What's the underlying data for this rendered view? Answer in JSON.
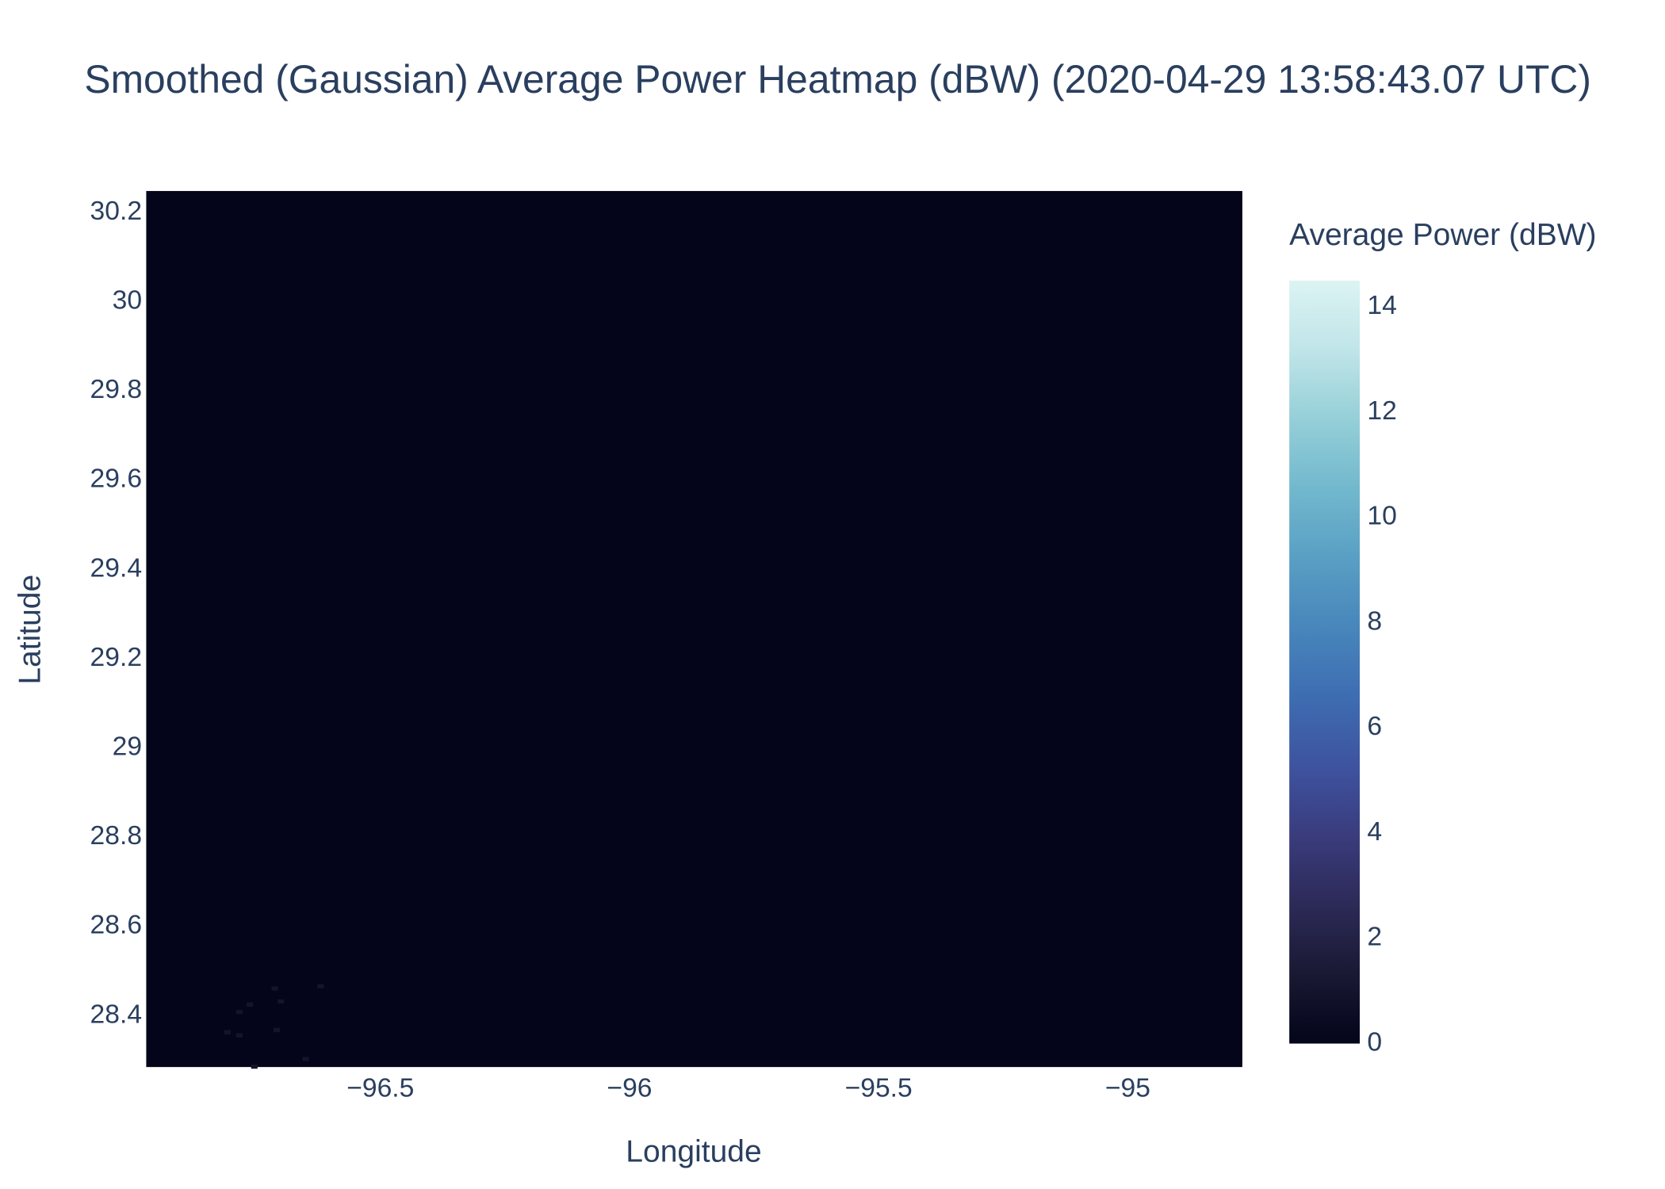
{
  "chart_data": {
    "type": "heatmap",
    "title": "Smoothed (Gaussian) Average Power Heatmap (dBW) (2020-04-29 13:58:43.07 UTC)",
    "x_label": "Longitude",
    "y_label": "Latitude",
    "colorbar_title": "Average Power (dBW)",
    "background_color": "#04051a",
    "xlim": [
      -96.97,
      -94.77
    ],
    "ylim": [
      28.285,
      30.248
    ],
    "xticks": [
      {
        "value": -96.5,
        "label": "−96.5"
      },
      {
        "value": -96,
        "label": "−96"
      },
      {
        "value": -95.5,
        "label": "−95.5"
      },
      {
        "value": -95,
        "label": "−95"
      }
    ],
    "yticks": [
      28.4,
      28.6,
      28.8,
      29,
      29.2,
      29.4,
      29.6,
      29.8,
      30,
      30.2
    ],
    "clim": [
      0,
      14.5
    ],
    "cticks": [
      0,
      2,
      4,
      6,
      8,
      10,
      12,
      14
    ],
    "colorscale": [
      "#03051a",
      "#191933",
      "#2c2a57",
      "#3a3c7d",
      "#3e53a0",
      "#3e6db2",
      "#4886bb",
      "#599fc4",
      "#72b8cd",
      "#95cfd8",
      "#c0e5e8",
      "#dcf3f3"
    ],
    "x": [
      -96.807,
      -96.783,
      -96.762,
      -96.712,
      -96.7,
      -96.62,
      -96.708,
      -96.783,
      -96.65,
      -96.753
    ],
    "y": [
      28.363,
      28.408,
      28.425,
      28.461,
      28.432,
      28.466,
      28.368,
      28.356,
      28.303,
      28.286
    ],
    "values": [
      1,
      1,
      1,
      1,
      1,
      1,
      1,
      1,
      1,
      1
    ]
  }
}
